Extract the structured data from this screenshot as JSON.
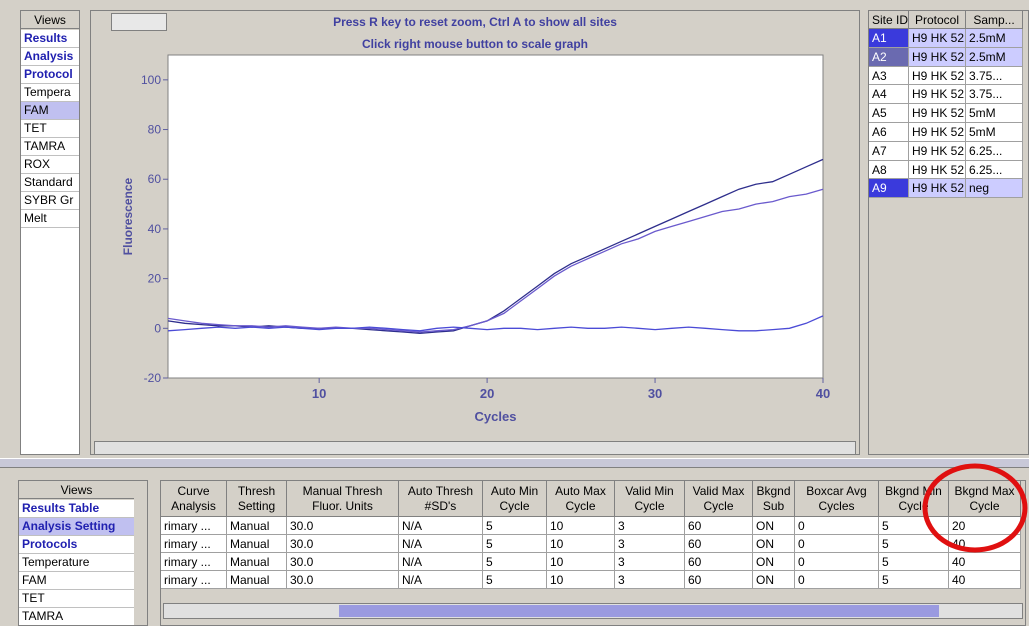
{
  "top_views": {
    "header": "Views",
    "items": [
      "Results",
      "Analysis",
      "Protocol",
      "Tempera",
      "FAM",
      "TET",
      "TAMRA",
      "ROX",
      "Standard",
      "SYBR Gr",
      "Melt"
    ]
  },
  "chart_panel": {
    "notice": [
      "Press R key to reset zoom, Ctrl A to show all sites",
      "Click right mouse button to scale graph"
    ],
    "chart": {
      "type": "line",
      "xlabel": "Cycles",
      "ylabel": "Fluorescence",
      "x": [
        1,
        2,
        3,
        4,
        5,
        6,
        7,
        8,
        9,
        10,
        11,
        12,
        13,
        14,
        15,
        16,
        17,
        18,
        19,
        20,
        21,
        22,
        23,
        24,
        25,
        26,
        27,
        28,
        29,
        30,
        31,
        32,
        33,
        34,
        35,
        36,
        37,
        38,
        39,
        40
      ],
      "series": [
        {
          "color": "#2e2e8c",
          "values": [
            3,
            2,
            1.5,
            1,
            1,
            0.5,
            1,
            0.5,
            0,
            0,
            0,
            0,
            -0.5,
            -1,
            -1.5,
            -2,
            -1.5,
            -1,
            1,
            3,
            7,
            12,
            17,
            22,
            26,
            29,
            32,
            35,
            38,
            41,
            44,
            47,
            50,
            53,
            56,
            58,
            59,
            62,
            65,
            68
          ]
        },
        {
          "color": "#6a5acd",
          "values": [
            4,
            3,
            2,
            1.5,
            1,
            1,
            0.5,
            1,
            0.5,
            0,
            0.5,
            0,
            0,
            -0.5,
            -1,
            -1.5,
            -1,
            -0.5,
            1,
            3,
            6,
            11,
            16,
            21,
            25,
            28,
            31,
            34,
            36,
            39,
            41,
            43,
            45,
            47,
            48,
            50,
            51,
            53,
            54,
            56
          ]
        },
        {
          "color": "#4b4bd6",
          "values": [
            -1,
            -0.5,
            0,
            0.5,
            0,
            0.5,
            0,
            0.5,
            0,
            -0.5,
            0,
            0,
            0.5,
            0,
            -0.5,
            -1,
            0,
            0.5,
            0,
            -0.5,
            0,
            0,
            -0.5,
            0,
            0.5,
            0,
            0,
            0.5,
            0,
            -0.5,
            0,
            0.5,
            0,
            -0.5,
            -1,
            -1,
            -0.5,
            0,
            2,
            5
          ]
        }
      ],
      "xlim": [
        1,
        40
      ],
      "ylim": [
        -20,
        110
      ],
      "xticks": [
        10,
        20,
        30,
        40
      ],
      "yticks": [
        -20,
        0,
        20,
        40,
        60,
        80,
        100
      ]
    }
  },
  "sites_table": {
    "columns": [
      "Site ID",
      "Protocol",
      "Samp..."
    ],
    "rows": [
      [
        "A1",
        "H9 HK 52",
        "2.5mM"
      ],
      [
        "A2",
        "H9 HK 52",
        "2.5mM"
      ],
      [
        "A3",
        "H9 HK 52",
        "3.75..."
      ],
      [
        "A4",
        "H9 HK 52",
        "3.75..."
      ],
      [
        "A5",
        "H9 HK 52",
        "5mM"
      ],
      [
        "A6",
        "H9 HK 52",
        "5mM"
      ],
      [
        "A7",
        "H9 HK 52",
        "6.25..."
      ],
      [
        "A8",
        "H9 HK 52",
        "6.25..."
      ],
      [
        "A9",
        "H9 HK 52",
        "neg"
      ]
    ]
  },
  "bottom_views": {
    "header": "Views",
    "items": [
      "Results Table",
      "Analysis Setting",
      "Protocols",
      "Temperature",
      "FAM",
      "TET",
      "TAMRA"
    ]
  },
  "results_table": {
    "columns": [
      "Curve Analysis",
      "Thresh Setting",
      "Manual Thresh Fluor. Units",
      "Auto Thresh #SD's",
      "Auto Min Cycle",
      "Auto Max Cycle",
      "Valid Min Cycle",
      "Valid Max Cycle",
      "Bkgnd Sub",
      "Boxcar Avg Cycles",
      "Bkgnd Min Cycle",
      "Bkgnd Max Cycle"
    ],
    "rows": [
      [
        "rimary ...",
        "Manual",
        "30.0",
        "N/A",
        "5",
        "10",
        "3",
        "60",
        "ON",
        "0",
        "5",
        "20"
      ],
      [
        "rimary ...",
        "Manual",
        "30.0",
        "N/A",
        "5",
        "10",
        "3",
        "60",
        "ON",
        "0",
        "5",
        "40"
      ],
      [
        "rimary ...",
        "Manual",
        "30.0",
        "N/A",
        "5",
        "10",
        "3",
        "60",
        "ON",
        "0",
        "5",
        "40"
      ],
      [
        "rimary ...",
        "Manual",
        "30.0",
        "N/A",
        "5",
        "10",
        "3",
        "60",
        "ON",
        "0",
        "5",
        "40"
      ]
    ]
  }
}
